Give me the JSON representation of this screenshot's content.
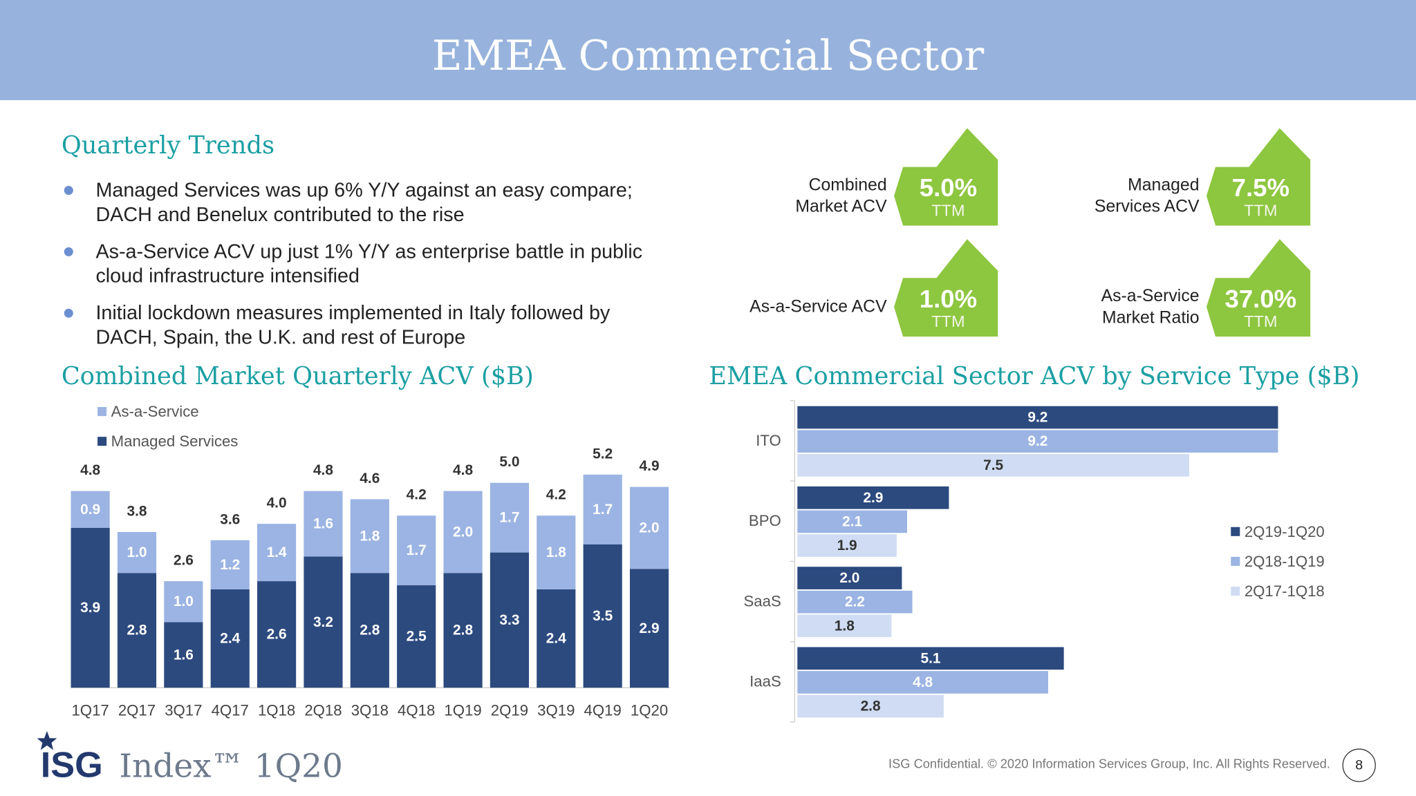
{
  "header": {
    "title": "EMEA Commercial Sector"
  },
  "trends": {
    "title": "Quarterly Trends",
    "bullets": [
      [
        "Managed Services was up 6% Y/Y against an easy compare;",
        "DACH and Benelux contributed to the rise"
      ],
      [
        "As-a-Service ACV up just 1% Y/Y as enterprise battle in public",
        "cloud infrastructure intensified"
      ],
      [
        "Initial lockdown measures implemented in Italy followed by",
        "DACH, Spain, the U.K. and rest of Europe"
      ]
    ]
  },
  "kpis": [
    {
      "label": [
        "Combined",
        "Market ACV"
      ],
      "value": "5.0%",
      "sub": "TTM"
    },
    {
      "label": [
        "Managed",
        "Services ACV"
      ],
      "value": "7.5%",
      "sub": "TTM"
    },
    {
      "label": [
        "As-a-Service ACV"
      ],
      "value": "1.0%",
      "sub": "TTM"
    },
    {
      "label": [
        "As-a-Service",
        "Market Ratio"
      ],
      "value": "37.0%",
      "sub": "TTM"
    }
  ],
  "chart_data": [
    {
      "type": "stacked-bar",
      "title": "Combined Market Quarterly ACV ($B)",
      "categories": [
        "1Q17",
        "2Q17",
        "3Q17",
        "4Q17",
        "1Q18",
        "2Q18",
        "3Q18",
        "4Q18",
        "1Q19",
        "2Q19",
        "3Q19",
        "4Q19",
        "1Q20"
      ],
      "series": [
        {
          "name": "Managed Services",
          "color": "#2c4a7e",
          "values": [
            3.9,
            2.8,
            1.6,
            2.4,
            2.6,
            3.2,
            2.8,
            2.5,
            2.8,
            3.3,
            2.4,
            3.5,
            2.9
          ],
          "value_labels": [
            "3.9",
            "2.8",
            "1.6",
            "2.4",
            "2.6",
            "3.2",
            "2.8",
            "2.5",
            "2.8",
            "3.3",
            "2.4",
            "3.5",
            "2.9"
          ]
        },
        {
          "name": "As-a-Service",
          "color": "#9bb4e3",
          "values": [
            0.9,
            1.0,
            1.0,
            1.2,
            1.4,
            1.6,
            1.8,
            1.7,
            2.0,
            1.7,
            1.8,
            1.7,
            2.0
          ],
          "value_labels": [
            "0.9",
            "1.0",
            "1.0",
            "1.2",
            "1.4",
            "1.6",
            "1.8",
            "1.7",
            "2.0",
            "1.7",
            "1.8",
            "1.7",
            "2.0"
          ]
        }
      ],
      "totals": [
        4.8,
        3.8,
        2.6,
        3.6,
        4.0,
        4.8,
        4.6,
        4.2,
        4.8,
        5.0,
        4.2,
        5.2,
        4.9
      ],
      "total_labels": [
        "4.8",
        "3.8",
        "2.6",
        "3.6",
        "4.0",
        "4.8",
        "4.6",
        "4.2",
        "4.8",
        "5.0",
        "4.2",
        "5.2",
        "4.9"
      ]
    },
    {
      "type": "barh",
      "title": "EMEA Commercial Sector ACV by Service Type ($B)",
      "categories": [
        "ITO",
        "BPO",
        "SaaS",
        "IaaS"
      ],
      "series": [
        {
          "name": "2Q19-1Q20",
          "color": "#2c4a7e",
          "values": [
            9.2,
            2.9,
            2.0,
            5.1
          ],
          "value_labels": [
            "9.2",
            "2.9",
            "2.0",
            "5.1"
          ]
        },
        {
          "name": "2Q18-1Q19",
          "color": "#9bb4e3",
          "values": [
            9.2,
            2.1,
            2.2,
            4.8
          ],
          "value_labels": [
            "9.2",
            "2.1",
            "2.2",
            "4.8"
          ]
        },
        {
          "name": "2Q17-1Q18",
          "color": "#cfdcf3",
          "values": [
            7.5,
            1.9,
            1.8,
            2.8
          ],
          "value_labels": [
            "7.5",
            "1.9",
            "1.8",
            "2.8"
          ]
        }
      ]
    }
  ],
  "footer": {
    "brand": "ISG",
    "product": "Index™ 1Q20",
    "notice": "ISG Confidential. © 2020 Information Services Group, Inc.  All Rights Reserved.",
    "page": 8
  }
}
